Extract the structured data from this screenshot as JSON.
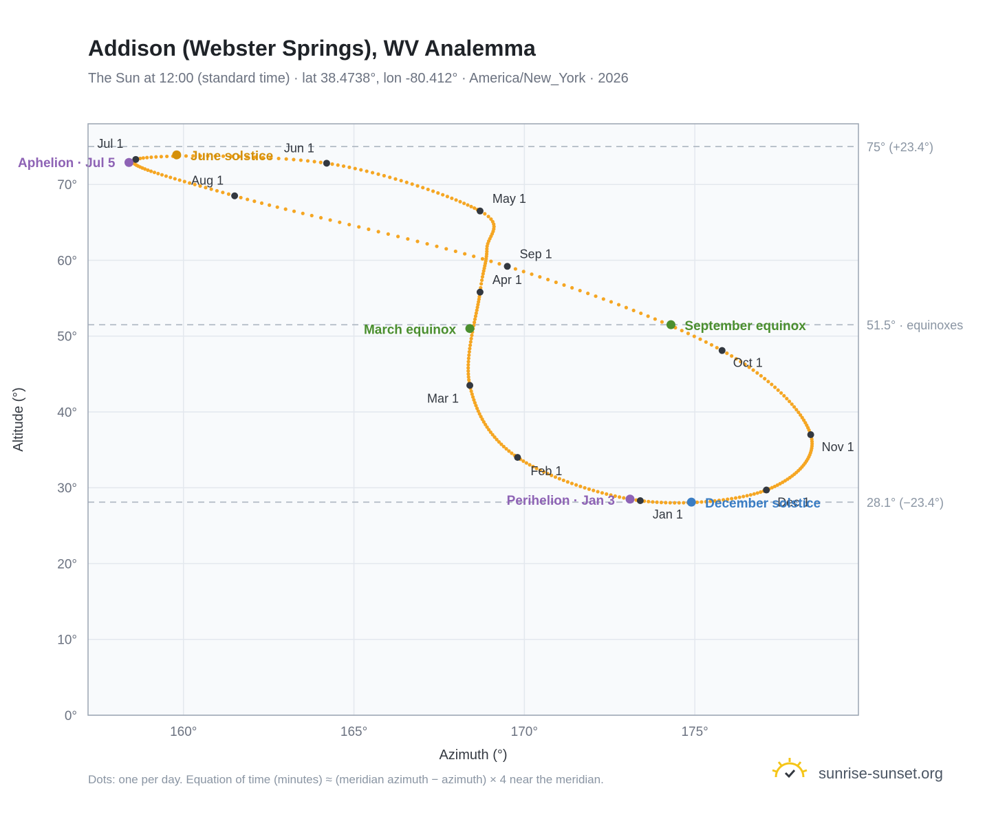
{
  "title": "Addison (Webster Springs), WV Analemma",
  "subtitle": "The Sun at 12:00 (standard time) · lat 38.4738°, lon -80.412° · America/New_York · 2026",
  "footnote": "Dots: one per day. Equation of time (minutes) ≈ (meridian azimuth − azimuth) × 4 near the meridian.",
  "brand": "sunrise-sunset.org",
  "colors": {
    "path": "#f5a623",
    "month_marker": "#333840",
    "aphelion": "#8e63b5",
    "perihelion": "#8e63b5",
    "june_solstice": "#d4900a",
    "december_solstice": "#3a7dc4",
    "equinox": "#4b8f2f",
    "grid": "#e3e8ee",
    "plot_bg": "#f8fafc",
    "reference_line": "#b6bec8"
  },
  "chart_data": {
    "type": "scatter",
    "xlabel": "Azimuth (°)",
    "ylabel": "Altitude (°)",
    "xlim": [
      157.2,
      179.8
    ],
    "ylim": [
      0,
      78
    ],
    "xticks": [
      160,
      165,
      170,
      175
    ],
    "xtick_labels": [
      "160°",
      "165°",
      "170°",
      "175°"
    ],
    "yticks": [
      0,
      10,
      20,
      30,
      40,
      50,
      60,
      70
    ],
    "ytick_labels": [
      "0°",
      "10°",
      "20°",
      "30°",
      "40°",
      "50°",
      "60°",
      "70°"
    ],
    "grid": true,
    "month_points": [
      {
        "label": "Jan 1",
        "az": 173.4,
        "alt": 28.3
      },
      {
        "label": "Feb 1",
        "az": 169.8,
        "alt": 34.0
      },
      {
        "label": "Mar 1",
        "az": 168.4,
        "alt": 43.5
      },
      {
        "label": "Apr 1",
        "az": 168.7,
        "alt": 55.8
      },
      {
        "label": "May 1",
        "az": 168.7,
        "alt": 66.5
      },
      {
        "label": "Jun 1",
        "az": 164.2,
        "alt": 72.8
      },
      {
        "label": "Jul 1",
        "az": 158.6,
        "alt": 73.3
      },
      {
        "label": "Aug 1",
        "az": 161.5,
        "alt": 68.5
      },
      {
        "label": "Sep 1",
        "az": 169.5,
        "alt": 59.2
      },
      {
        "label": "Oct 1",
        "az": 175.8,
        "alt": 48.1
      },
      {
        "label": "Nov 1",
        "az": 178.4,
        "alt": 37.0
      },
      {
        "label": "Dec 1",
        "az": 177.1,
        "alt": 29.7
      }
    ],
    "events": [
      {
        "label": "Aphelion · Jul 5",
        "az": 158.4,
        "alt": 72.9,
        "kind": "aphelion"
      },
      {
        "label": "June solstice",
        "az": 159.8,
        "alt": 73.9,
        "kind": "june_solstice"
      },
      {
        "label": "March equinox",
        "az": 168.4,
        "alt": 51.0,
        "kind": "equinox"
      },
      {
        "label": "September equinox",
        "az": 174.3,
        "alt": 51.5,
        "kind": "equinox"
      },
      {
        "label": "Perihelion · Jan 3",
        "az": 173.1,
        "alt": 28.5,
        "kind": "perihelion"
      },
      {
        "label": "December solstice",
        "az": 174.9,
        "alt": 28.1,
        "kind": "december_solstice"
      }
    ],
    "reference_lines": [
      {
        "alt": 75.0,
        "label": "75° (+23.4°)"
      },
      {
        "alt": 51.5,
        "label": "51.5° · equinoxes"
      },
      {
        "alt": 28.1,
        "label": "28.1° (−23.4°)"
      }
    ]
  }
}
